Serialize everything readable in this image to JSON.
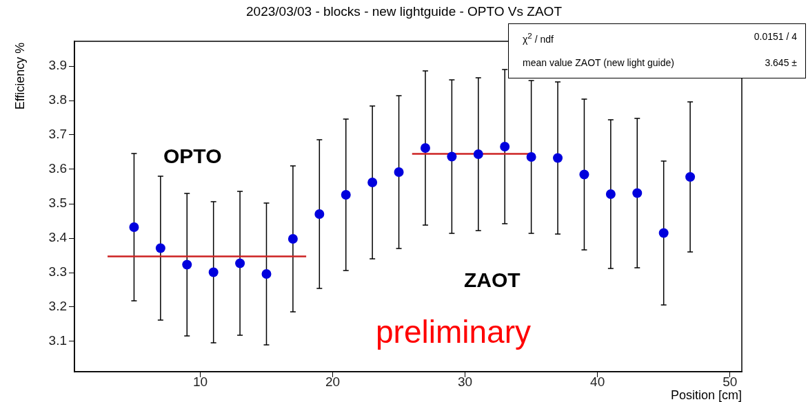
{
  "chart_data": {
    "type": "scatter",
    "title": "2023/03/03 - blocks - new lightguide - OPTO Vs ZAOT",
    "xlabel": "Position [cm]",
    "ylabel": "Efficiency %",
    "xlim": [
      0.5,
      50.9
    ],
    "ylim": [
      3.012,
      3.972
    ],
    "xticks": [
      10,
      20,
      30,
      40,
      50
    ],
    "yticks": [
      3.1,
      3.2,
      3.3,
      3.4,
      3.5,
      3.6,
      3.7,
      3.8,
      3.9
    ],
    "annotations": [
      "χ$^{2}$ / ndf",
      "0.0151 / 4",
      "mean value ZAOT (new light guide)",
      "3.645 ±",
      "OPTO",
      "ZAOT",
      "preliminary"
    ],
    "series": [
      {
        "color": "#0000dd",
        "marker": "circle",
        "x": [
          5,
          7,
          9,
          11,
          13,
          15,
          17,
          19,
          21,
          23,
          25,
          27,
          29,
          31,
          33,
          35,
          37,
          39,
          41,
          43,
          45,
          47
        ],
        "values": [
          3.432,
          3.371,
          3.323,
          3.301,
          3.327,
          3.296,
          3.398,
          3.47,
          3.526,
          3.562,
          3.592,
          3.662,
          3.637,
          3.644,
          3.666,
          3.636,
          3.633,
          3.585,
          3.528,
          3.531,
          3.415,
          3.578
        ],
        "errors": [
          0.214,
          0.209,
          0.207,
          0.205,
          0.209,
          0.206,
          0.212,
          0.216,
          0.22,
          0.222,
          0.222,
          0.224,
          0.223,
          0.222,
          0.224,
          0.222,
          0.221,
          0.219,
          0.216,
          0.217,
          0.209,
          0.218
        ]
      },
      {
        "type": "line",
        "color": "#cc2222",
        "marker": "none",
        "x": [
          3,
          18
        ],
        "values": [
          3.347,
          3.347
        ]
      },
      {
        "type": "line",
        "color": "#cc2222",
        "marker": "none",
        "x": [
          26,
          35
        ],
        "values": [
          3.645,
          3.645
        ]
      }
    ]
  }
}
